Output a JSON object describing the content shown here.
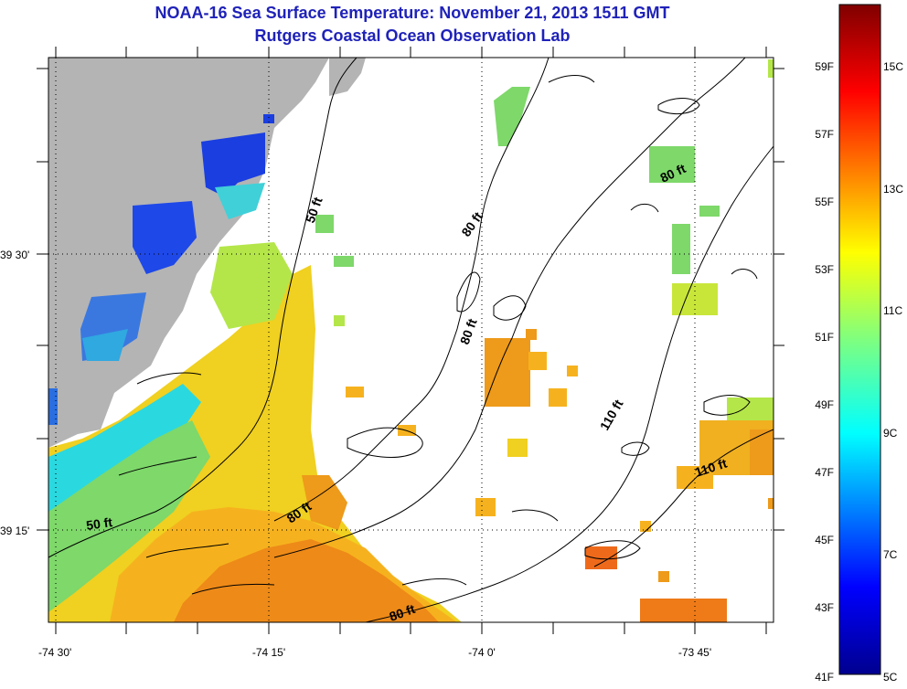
{
  "title": "NOAA-16 Sea Surface Temperature:  November 21, 2013 1511 GMT",
  "subtitle": "Rutgers Coastal Ocean Observation Lab",
  "axes": {
    "x_ticks": [
      "-74 30'",
      "-74 15'",
      "-74 0'",
      "-73 45'"
    ],
    "y_ticks": [
      "39 30'",
      "39 15'"
    ]
  },
  "contour_labels": [
    "50 ft",
    "50 ft",
    "80 ft",
    "80 ft",
    "80 ft",
    "80 ft",
    "80 ft",
    "110 ft",
    "110 ft"
  ],
  "colorbar": {
    "fahrenheit": [
      "59F",
      "57F",
      "55F",
      "53F",
      "51F",
      "49F",
      "47F",
      "45F",
      "43F",
      "41F"
    ],
    "celsius": [
      "15C",
      "13C",
      "11C",
      "9C",
      "7C",
      "5C"
    ],
    "range_c": [
      5,
      16
    ]
  },
  "colors": {
    "title": "#1f22b8",
    "land": "#b4b4b4"
  }
}
